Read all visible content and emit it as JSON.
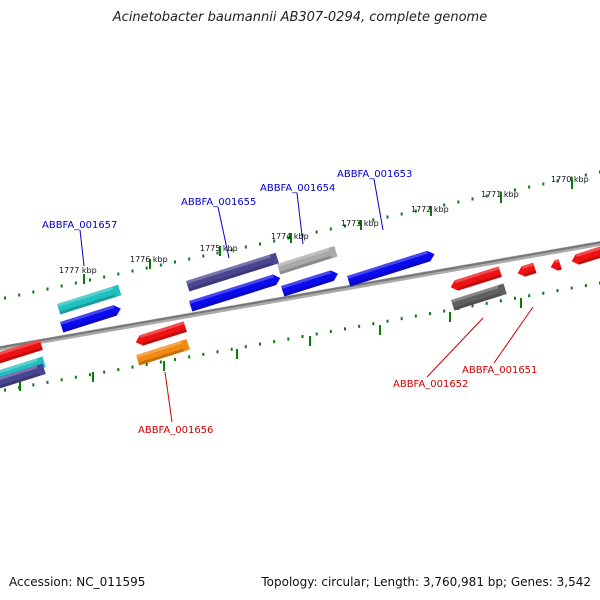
{
  "genome": {
    "title": "Acinetobacter baumannii AB307-0294, complete genome",
    "accession_text": "Accession: NC_011595",
    "summary_text": "Topology: circular; Length: 3,760,981 bp; Genes: 3,542"
  },
  "colors": {
    "backbone": "#8a8a8a",
    "tick": "#0a7a0a",
    "label_forward": "#0000cc",
    "label_reverse": "#cc0000",
    "blue": "#0a0aee",
    "navy": "#4a4590",
    "grey": "#aaaaaa",
    "cyan": "#20c0c0",
    "red": "#ee1111",
    "orange": "#f08a10",
    "darkgrey": "#606060"
  },
  "kbp_ticks": [
    "1777 kbp",
    "1776 kbp",
    "1775 kbp",
    "1774 kbp",
    "1773 kbp",
    "1772 kbp",
    "1771 kbp",
    "1770 kbp"
  ],
  "gene_labels": [
    {
      "text": "ABBFA_001657",
      "strand": "forward"
    },
    {
      "text": "ABBFA_001655",
      "strand": "forward"
    },
    {
      "text": "ABBFA_001654",
      "strand": "forward"
    },
    {
      "text": "ABBFA_001653",
      "strand": "forward"
    },
    {
      "text": "ABBFA_001656",
      "strand": "reverse"
    },
    {
      "text": "ABBFA_001652",
      "strand": "reverse"
    },
    {
      "text": "ABBFA_001651",
      "strand": "reverse"
    }
  ]
}
